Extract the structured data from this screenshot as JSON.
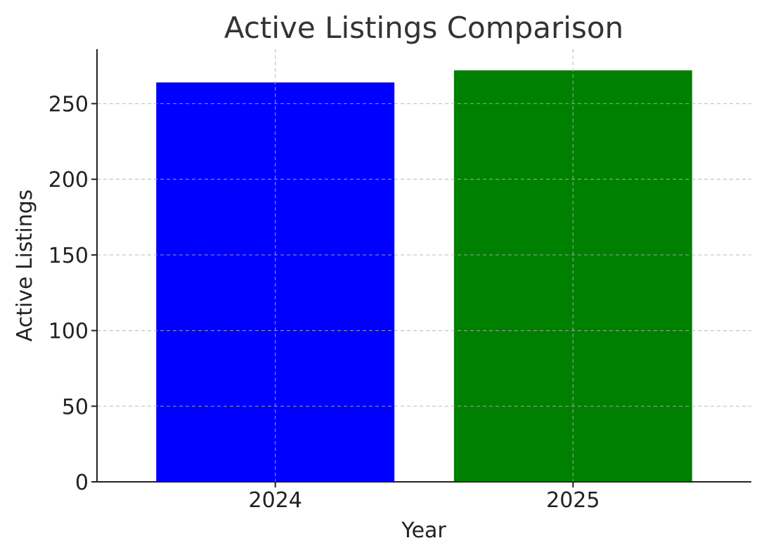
{
  "chart_data": {
    "type": "bar",
    "title": "Active Listings Comparison",
    "xlabel": "Year",
    "ylabel": "Active Listings",
    "categories": [
      "2024",
      "2025"
    ],
    "values": [
      264,
      272
    ],
    "colors": [
      "#0000ff",
      "#008000"
    ],
    "ylim": [
      0,
      286
    ],
    "yticks": [
      0,
      50,
      100,
      150,
      200,
      250
    ],
    "grid": true,
    "legend": "none"
  }
}
